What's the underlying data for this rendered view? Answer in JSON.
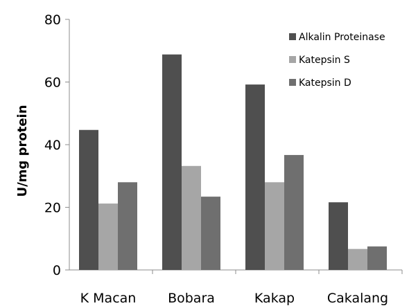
{
  "chart_data": {
    "type": "bar",
    "title": "",
    "xlabel": "",
    "ylabel": "U/mg protein",
    "ylim": [
      0,
      80
    ],
    "yticks": [
      0,
      20,
      40,
      60,
      80
    ],
    "categories": [
      "K Macan",
      "Bobara",
      "Kakap",
      "Cakalang"
    ],
    "series": [
      {
        "name": "Alkalin Proteinase",
        "values": [
          44.7,
          68.8,
          59.2,
          21.6
        ],
        "color": "#4f4f4f"
      },
      {
        "name": "Katepsin S",
        "values": [
          21.2,
          33.2,
          28.0,
          6.7
        ],
        "color": "#a6a6a6"
      },
      {
        "name": "Katepsin D",
        "values": [
          28.0,
          23.4,
          36.7,
          7.5
        ],
        "color": "#6f6f6f"
      }
    ],
    "grid": false,
    "legend_position": "top-right"
  }
}
